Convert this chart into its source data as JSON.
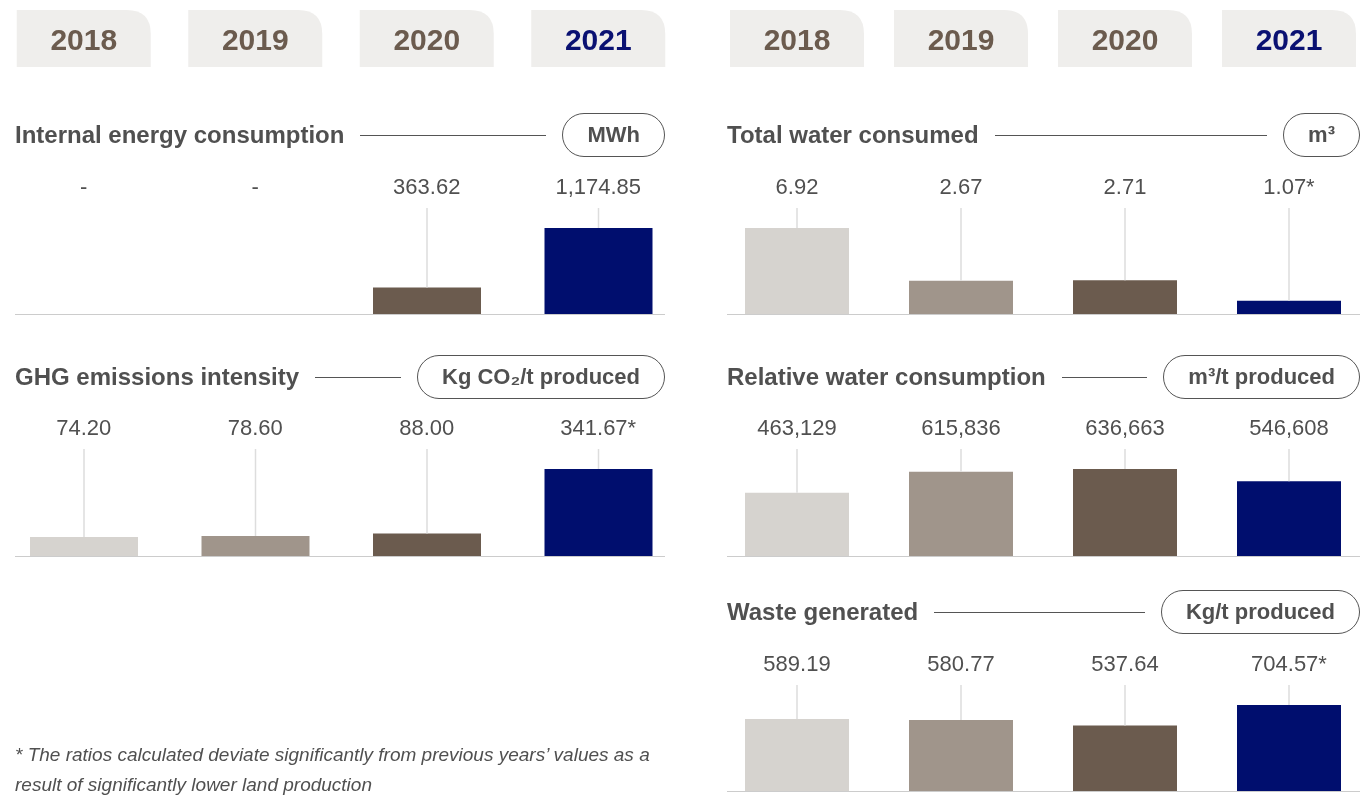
{
  "chart_data": [
    {
      "type": "bar",
      "title": "Internal energy consumption",
      "ylabel": "MWh",
      "categories": [
        "2018",
        "2019",
        "2020",
        "2021"
      ],
      "values": [
        null,
        null,
        363.62,
        1174.85
      ],
      "value_labels": [
        "-",
        "-",
        "363.62",
        "1,174.85"
      ],
      "colors": [
        "#d6d3cf",
        "#a0958b",
        "#6b5b4e",
        "#000e6e"
      ],
      "grid": "x"
    },
    {
      "type": "bar",
      "title": "GHG emissions intensity",
      "ylabel": "Kg CO₂/t produced",
      "categories": [
        "2018",
        "2019",
        "2020",
        "2021"
      ],
      "tick_labels": false,
      "values": [
        74.2,
        78.6,
        88.0,
        341.67
      ],
      "value_labels": [
        "74.20",
        "78.60",
        "88.00",
        "341.67*"
      ],
      "colors": [
        "#d6d3cf",
        "#a0958b",
        "#6b5b4e",
        "#000e6e"
      ],
      "grid": "x",
      "annotations": [
        "* The ratios calculated deviate significantly from previous years’ values as a result of significantly lower land production"
      ]
    },
    {
      "type": "bar",
      "title": "Total water consumed",
      "ylabel": "m³",
      "categories": [
        "2018",
        "2019",
        "2020",
        "2021"
      ],
      "values": [
        6.92,
        2.67,
        2.71,
        1.07
      ],
      "value_labels": [
        "6.92",
        "2.67",
        "2.71",
        "1.07*"
      ],
      "colors": [
        "#d6d3cf",
        "#a0958b",
        "#6b5b4e",
        "#000e6e"
      ],
      "grid": "x"
    },
    {
      "type": "bar",
      "title": "Relative water consumption",
      "ylabel": "m³/t produced",
      "categories": [
        "2018",
        "2019",
        "2020",
        "2021"
      ],
      "tick_labels": false,
      "values": [
        463129,
        615836,
        636663,
        546608
      ],
      "value_labels": [
        "463,129",
        "615,836",
        "636,663",
        "546,608"
      ],
      "colors": [
        "#d6d3cf",
        "#a0958b",
        "#6b5b4e",
        "#000e6e"
      ],
      "grid": "x"
    },
    {
      "type": "bar",
      "title": "Waste generated",
      "ylabel": "Kg/t produced",
      "categories": [
        "2018",
        "2019",
        "2020",
        "2021"
      ],
      "tick_labels": false,
      "values": [
        589.19,
        580.77,
        537.64,
        704.57
      ],
      "value_labels": [
        "589.19",
        "580.77",
        "537.64",
        "704.57*"
      ],
      "colors": [
        "#d6d3cf",
        "#a0958b",
        "#6b5b4e",
        "#000e6e"
      ],
      "grid": "x"
    }
  ]
}
